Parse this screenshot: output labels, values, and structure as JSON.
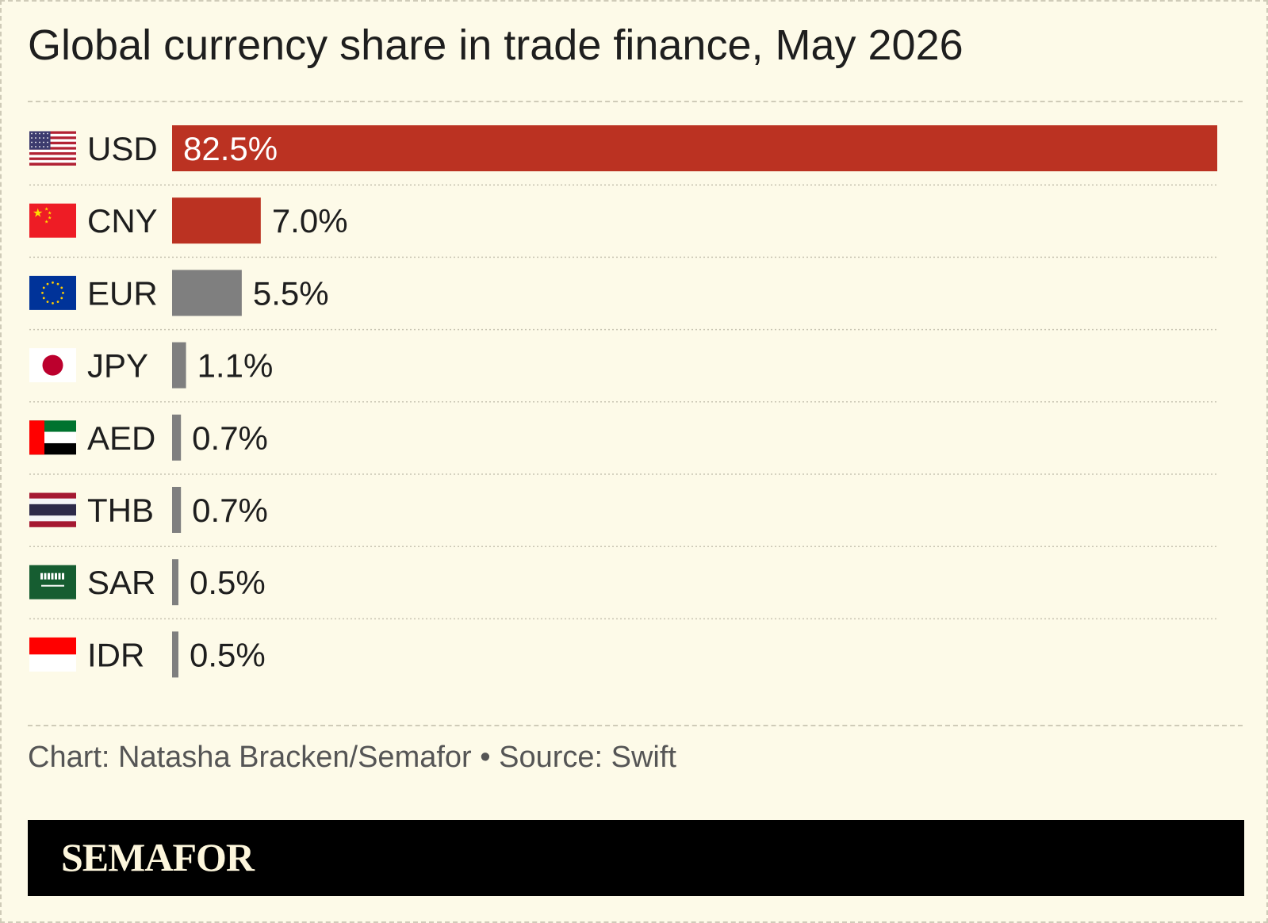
{
  "title": "Global currency share in trade finance, May 2026",
  "footer": {
    "credit": "Chart: Natasha Bracken/Semafor • Source: Swift",
    "logo": "SEMAFOR"
  },
  "colors": {
    "background": "#fdfae8",
    "highlight": "#bb3222",
    "other": "#7f7f7f",
    "text": "#1e1e1e"
  },
  "chart_data": {
    "type": "bar",
    "orientation": "horizontal",
    "title": "Global currency share in trade finance, May 2026",
    "unit": "%",
    "xlim": [
      0,
      82.5
    ],
    "grid": false,
    "legend": "none",
    "categories": [
      "USD",
      "CNY",
      "EUR",
      "JPY",
      "AED",
      "THB",
      "SAR",
      "IDR"
    ],
    "values": [
      82.5,
      7.0,
      5.5,
      1.1,
      0.7,
      0.7,
      0.5,
      0.5
    ],
    "labels": [
      "82.5%",
      "7.0%",
      "5.5%",
      "1.1%",
      "0.7%",
      "0.7%",
      "0.5%",
      "0.5%"
    ],
    "bar_colors": [
      "#bb3222",
      "#bb3222",
      "#7f7f7f",
      "#7f7f7f",
      "#7f7f7f",
      "#7f7f7f",
      "#7f7f7f",
      "#7f7f7f"
    ],
    "flag_icons": [
      "us-flag-icon",
      "china-flag-icon",
      "eu-flag-icon",
      "japan-flag-icon",
      "uae-flag-icon",
      "thailand-flag-icon",
      "saudi-flag-icon",
      "indonesia-flag-icon"
    ]
  }
}
